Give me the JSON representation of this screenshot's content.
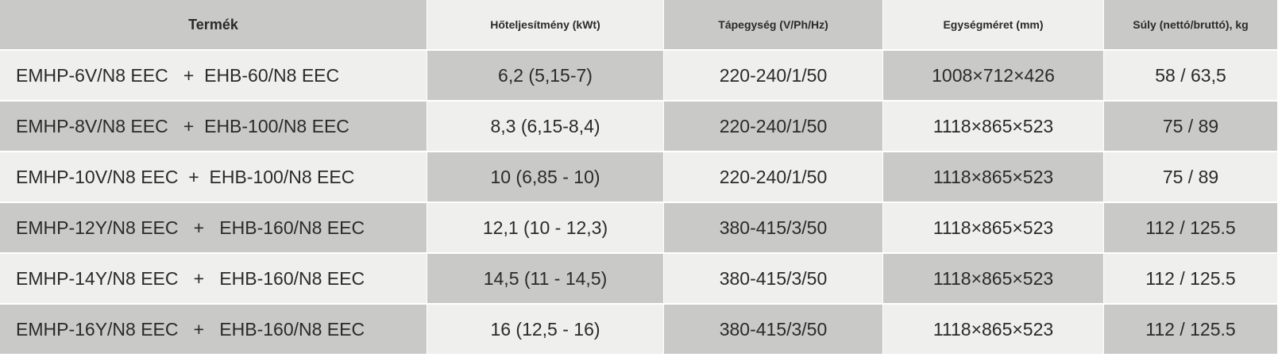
{
  "table": {
    "header": [
      "Termék",
      "Hőteljesítmény (kWt)",
      "Tápegység (V/Ph/Hz)",
      "Egységméret (mm)",
      "Súly (nettó/bruttó), kg"
    ],
    "rows": [
      [
        "EMHP-6V/N8 EEC   +  EHB-60/N8 EEC",
        "6,2 (5,15-7)",
        "220-240/1/50",
        "1008×712×426",
        "58 / 63,5"
      ],
      [
        "EMHP-8V/N8 EEC   +  EHB-100/N8 EEC",
        "8,3 (6,15-8,4)",
        "220-240/1/50",
        "1118×865×523",
        "75 / 89"
      ],
      [
        "EMHP-10V/N8 EEC  +  EHB-100/N8 EEC",
        "10 (6,85 - 10)",
        "220-240/1/50",
        "1118×865×523",
        "75 / 89"
      ],
      [
        "EMHP-12Y/N8 EEC   +   EHB-160/N8 EEC",
        "12,1 (10 - 12,3)",
        "380-415/3/50",
        "1118×865×523",
        "112 / 125.5"
      ],
      [
        "EMHP-14Y/N8 EEC   +   EHB-160/N8 EEC",
        "14,5 (11 - 14,5)",
        "380-415/3/50",
        "1118×865×523",
        "112 / 125.5"
      ],
      [
        "EMHP-16Y/N8 EEC   +   EHB-160/N8 EEC",
        "16 (12,5 - 16)",
        "380-415/3/50",
        "1118×865×523",
        "112 / 125.5"
      ]
    ]
  }
}
